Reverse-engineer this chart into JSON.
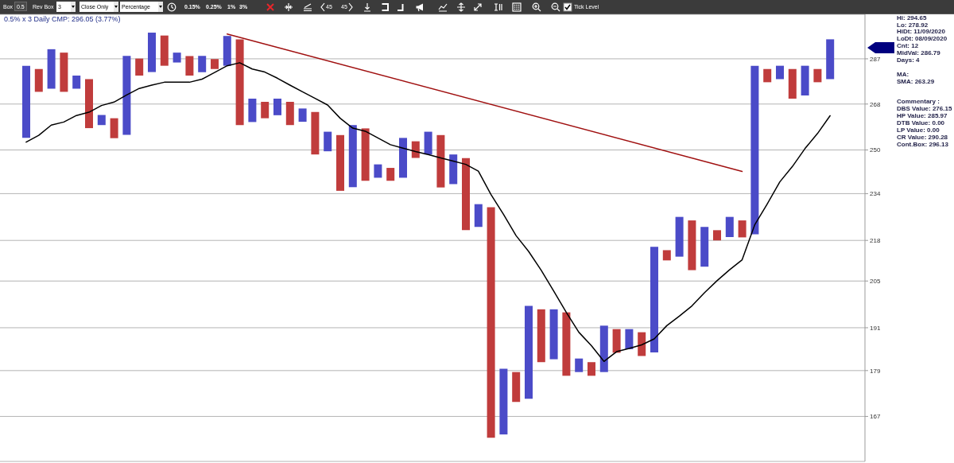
{
  "chart_data": {
    "type": "bar",
    "title": "0.5% x 3 Daily CMP: 296.05 (3.77%)",
    "categories": [
      null,
      null,
      null,
      null,
      null,
      null,
      null,
      null,
      null,
      null,
      null,
      null,
      null,
      null,
      null,
      null,
      null,
      null,
      null,
      null,
      null,
      null,
      null,
      null,
      null,
      null,
      null,
      null,
      null,
      null,
      null,
      null,
      null,
      null,
      null,
      null,
      null,
      null,
      null,
      null,
      null,
      null,
      null,
      null,
      null,
      null,
      null,
      null,
      null,
      null,
      null,
      null,
      null,
      null,
      null,
      null,
      null,
      null,
      null,
      null,
      null,
      null,
      null,
      null,
      null
    ],
    "series": [
      {
        "base": [
          254.6,
          273.0,
          274.3,
          273.0,
          274.3,
          258.4,
          259.6,
          254.5,
          255.8,
          279.8,
          281.3,
          284.0,
          285.4,
          279.8,
          281.2,
          282.6,
          284.0,
          259.6,
          260.8,
          262.3,
          263.5,
          259.6,
          260.9,
          248.3,
          249.5,
          235.0,
          236.3,
          238.6,
          239.7,
          238.6,
          239.7,
          247.0,
          248.3,
          236.2,
          237.4,
          221.4,
          222.5,
          161.7,
          162.5,
          170.7,
          171.5,
          181.3,
          182.1,
          177.6,
          178.6,
          177.6,
          178.6,
          183.9,
          184.9,
          183.0,
          184.0,
          211.5,
          212.7,
          208.4,
          209.5,
          218.0,
          219.1,
          219.0,
          220.0,
          277.0,
          278.3,
          270.2,
          271.5,
          277.0,
          278.3
        ],
        "values": [
          29.4,
          9.6,
          16.9,
          16.7,
          5.5,
          19.9,
          4.0,
          7.8,
          32.5,
          7.3,
          17.3,
          13.3,
          4.3,
          8.4,
          7.1,
          4.3,
          13.1,
          36.0,
          9.4,
          6.6,
          6.7,
          9.3,
          5.3,
          16.5,
          7.5,
          20.7,
          23.3,
          19.7,
          4.9,
          4.7,
          14.9,
          6.3,
          8.7,
          19.5,
          10.9,
          25.5,
          7.8,
          67.5,
          17.0,
          7.9,
          25.9,
          15.1,
          14.3,
          17.9,
          3.7,
          3.7,
          13.0,
          6.7,
          5.7,
          6.7,
          31.9,
          3.3,
          13.2,
          16.3,
          13.0,
          3.4,
          6.8,
          5.7,
          64.0,
          5.6,
          5.7,
          12.4,
          12.5,
          5.6,
          17.3
        ],
        "colors": [
          "#4b4bc8",
          "#c03c3c",
          "#4b4bc8",
          "#c03c3c",
          "#4b4bc8",
          "#c03c3c",
          "#4b4bc8",
          "#c03c3c",
          "#4b4bc8",
          "#c03c3c",
          "#4b4bc8",
          "#c03c3c",
          "#4b4bc8",
          "#c03c3c",
          "#4b4bc8",
          "#c03c3c",
          "#4b4bc8",
          "#c03c3c",
          "#4b4bc8",
          "#c03c3c",
          "#4b4bc8",
          "#c03c3c",
          "#4b4bc8",
          "#c03c3c",
          "#4b4bc8",
          "#c03c3c",
          "#4b4bc8",
          "#c03c3c",
          "#4b4bc8",
          "#c03c3c",
          "#4b4bc8",
          "#c03c3c",
          "#4b4bc8",
          "#c03c3c",
          "#4b4bc8",
          "#c03c3c",
          "#4b4bc8",
          "#c03c3c",
          "#4b4bc8",
          "#c03c3c",
          "#4b4bc8",
          "#c03c3c",
          "#4b4bc8",
          "#c03c3c",
          "#4b4bc8",
          "#c03c3c",
          "#4b4bc8",
          "#c03c3c",
          "#4b4bc8",
          "#c03c3c",
          "#4b4bc8",
          "#c03c3c",
          "#4b4bc8",
          "#c03c3c",
          "#4b4bc8",
          "#c03c3c",
          "#4b4bc8",
          "#c03c3c",
          "#4b4bc8",
          "#c03c3c",
          "#4b4bc8",
          "#c03c3c",
          "#4b4bc8",
          "#c03c3c",
          "#4b4bc8"
        ]
      },
      {
        "type": "line",
        "color": "#000000",
        "values": [
          253.0,
          255.6,
          259.6,
          260.8,
          263.4,
          264.7,
          267.4,
          268.8,
          271.7,
          274.4,
          275.8,
          277.0,
          277.0,
          277.0,
          278.3,
          281.1,
          284.0,
          285.3,
          282.6,
          281.3,
          278.7,
          275.8,
          273.0,
          270.3,
          267.6,
          262.3,
          258.4,
          257.2,
          254.6,
          252.0,
          250.7,
          249.4,
          248.3,
          247.0,
          245.8,
          244.6,
          242.1,
          233.7,
          226.8,
          219.6,
          214.4,
          208.4,
          201.9,
          195.5,
          189.7,
          185.9,
          181.5,
          184.2,
          185.1,
          186.1,
          187.8,
          191.6,
          194.4,
          197.4,
          201.4,
          205.1,
          208.5,
          211.7,
          223.2,
          230.4,
          238.2,
          243.8,
          250.5,
          256.3,
          263.3
        ]
      },
      {
        "type": "line",
        "color": "#a01010",
        "values": [
          null,
          null,
          null,
          null,
          null,
          null,
          null,
          null,
          null,
          null,
          null,
          null,
          null,
          null,
          null,
          null,
          298,
          null,
          null,
          null,
          null,
          null,
          null,
          null,
          null,
          null,
          null,
          null,
          null,
          null,
          null,
          null,
          null,
          null,
          null,
          null,
          null,
          null,
          null,
          null,
          null,
          null,
          null,
          null,
          null,
          null,
          null,
          null,
          null,
          null,
          null,
          null,
          null,
          null,
          null,
          null,
          null,
          242,
          null,
          null,
          null,
          null,
          null,
          null,
          null
        ]
      }
    ],
    "ylim": [
      156,
      307
    ],
    "yticks": [
      167,
      179,
      191,
      205,
      218,
      234,
      250,
      268,
      287
    ],
    "log": true,
    "grid": "y",
    "marker": "none",
    "tick_labels": "y",
    "annotations": [
      "Box",
      "0.5",
      "Rev Box",
      "3",
      "Close Only",
      "Percentage",
      "0.15%",
      "0.25%",
      "1%",
      "3%",
      "45",
      "45",
      "Tick Level",
      "Hi: 294.65",
      "Lo: 278.92",
      "HiDt: 11/09/2020",
      "LoDt: 08/09/2020",
      "Cnt: 12",
      "MidVal: 286.79",
      "Days: 4",
      "MA:",
      "SMA: 263.29",
      "Commentary :",
      "DBS Value: 276.15",
      "HP Value: 285.97",
      "DTB Value: 0.00",
      "LP Value: 0.00",
      "CR Value: 290.28",
      "Cont.Box: 296.13"
    ]
  }
}
